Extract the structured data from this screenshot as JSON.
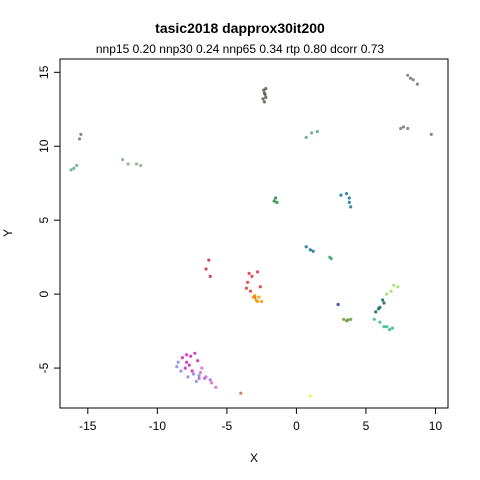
{
  "chart_data": {
    "type": "scatter",
    "title": "tasic2018 dapprox30it200",
    "subtitle": "nnp15 0.20 nnp30 0.24 nnp65 0.34 rtp 0.80 dcorr 0.73",
    "xlabel": "X",
    "ylabel": "Y",
    "xlim": [
      -17,
      10.9
    ],
    "ylim": [
      -7.7,
      15.9
    ],
    "xticks": [
      -15,
      -10,
      -5,
      0,
      5,
      10
    ],
    "yticks": [
      -5,
      0,
      5,
      10,
      15
    ],
    "grid": false,
    "clusters": [
      {
        "color": "#5a5a52",
        "points": [
          [
            -2.3,
            13.0
          ],
          [
            -2.2,
            13.3
          ],
          [
            -2.3,
            13.6
          ],
          [
            -2.2,
            13.9
          ],
          [
            -2.4,
            13.2
          ],
          [
            -2.25,
            13.5
          ],
          [
            -2.35,
            13.8
          ]
        ]
      },
      {
        "color": "#777777",
        "points": [
          [
            8.0,
            14.8
          ],
          [
            8.4,
            14.5
          ],
          [
            8.7,
            14.2
          ],
          [
            8.2,
            14.6
          ]
        ]
      },
      {
        "color": "#777777",
        "points": [
          [
            7.5,
            11.2
          ],
          [
            7.7,
            11.3
          ],
          [
            8.0,
            11.2
          ],
          [
            9.7,
            10.8
          ]
        ]
      },
      {
        "color": "#55aa77",
        "points": [
          [
            0.7,
            10.6
          ],
          [
            1.1,
            10.9
          ],
          [
            1.5,
            11.0
          ]
        ]
      },
      {
        "color": "#777777",
        "points": [
          [
            -15.5,
            10.8
          ],
          [
            -15.6,
            10.5
          ]
        ]
      },
      {
        "color": "#66aa88",
        "points": [
          [
            -16.0,
            8.5
          ],
          [
            -15.8,
            8.7
          ],
          [
            -16.2,
            8.4
          ]
        ]
      },
      {
        "color": "#88aa88",
        "points": [
          [
            -12.5,
            9.1
          ],
          [
            -12.1,
            8.8
          ],
          [
            -11.5,
            8.8
          ],
          [
            -11.2,
            8.7
          ]
        ]
      },
      {
        "color": "#228844",
        "points": [
          [
            -1.6,
            6.3
          ],
          [
            -1.5,
            6.5
          ],
          [
            -1.4,
            6.2
          ]
        ]
      },
      {
        "color": "#117799",
        "points": [
          [
            3.2,
            6.7
          ],
          [
            3.6,
            6.8
          ],
          [
            3.8,
            6.5
          ],
          [
            3.8,
            6.2
          ],
          [
            3.9,
            5.9
          ]
        ]
      },
      {
        "color": "#0a6f8f",
        "points": [
          [
            0.7,
            3.2
          ],
          [
            1.0,
            3.0
          ],
          [
            1.2,
            2.9
          ]
        ]
      },
      {
        "color": "#33aa66",
        "points": [
          [
            2.4,
            2.5
          ],
          [
            2.5,
            2.4
          ]
        ]
      },
      {
        "color": "#cc2244",
        "points": [
          [
            -6.5,
            1.7
          ],
          [
            -6.3,
            2.3
          ],
          [
            -6.2,
            1.2
          ]
        ]
      },
      {
        "color": "#dd3333",
        "points": [
          [
            -3.4,
            1.4
          ],
          [
            -3.5,
            0.8
          ],
          [
            -3.3,
            0.2
          ],
          [
            -3.0,
            -0.2
          ],
          [
            -2.6,
            0.5
          ],
          [
            -2.8,
            1.5
          ],
          [
            -3.2,
            1.2
          ],
          [
            -3.6,
            0.4
          ]
        ]
      },
      {
        "color": "#ee9900",
        "points": [
          [
            -3.1,
            -0.2
          ],
          [
            -2.8,
            -0.5
          ],
          [
            -2.5,
            -0.5
          ],
          [
            -2.7,
            -0.2
          ],
          [
            -2.9,
            -0.4
          ],
          [
            -3.0,
            -0.1
          ]
        ]
      },
      {
        "color": "#2233aa",
        "points": [
          [
            3.0,
            -0.7
          ]
        ]
      },
      {
        "color": "#99dd66",
        "points": [
          [
            7.0,
            0.6
          ],
          [
            7.3,
            0.5
          ],
          [
            6.8,
            0.2
          ],
          [
            6.5,
            0.0
          ]
        ]
      },
      {
        "color": "#116655",
        "points": [
          [
            5.7,
            -1.2
          ],
          [
            6.0,
            -0.9
          ],
          [
            6.3,
            -0.6
          ],
          [
            5.9,
            -1.0
          ],
          [
            6.2,
            -0.4
          ]
        ]
      },
      {
        "color": "#669933",
        "points": [
          [
            3.4,
            -1.7
          ],
          [
            3.6,
            -1.8
          ],
          [
            3.9,
            -1.7
          ],
          [
            3.7,
            -1.75
          ]
        ]
      },
      {
        "color": "#33bb88",
        "points": [
          [
            5.6,
            -1.7
          ],
          [
            6.0,
            -1.9
          ],
          [
            6.3,
            -2.2
          ],
          [
            6.7,
            -2.4
          ],
          [
            6.9,
            -2.3
          ],
          [
            6.5,
            -2.2
          ]
        ]
      },
      {
        "color": "#cc22bb",
        "points": [
          [
            -8.2,
            -4.3
          ],
          [
            -7.9,
            -4.6
          ],
          [
            -7.6,
            -4.2
          ],
          [
            -7.3,
            -4.0
          ],
          [
            -7.7,
            -4.8
          ],
          [
            -8.0,
            -5.0
          ],
          [
            -7.5,
            -5.2
          ],
          [
            -7.1,
            -4.5
          ],
          [
            -7.9,
            -4.1
          ]
        ]
      },
      {
        "color": "#dd66cc",
        "points": [
          [
            -6.9,
            -5.3
          ],
          [
            -6.5,
            -5.6
          ],
          [
            -6.1,
            -6.0
          ],
          [
            -5.8,
            -6.3
          ],
          [
            -6.8,
            -5.0
          ]
        ]
      },
      {
        "color": "#8888dd",
        "points": [
          [
            -8.5,
            -4.6
          ],
          [
            -8.3,
            -5.2
          ],
          [
            -7.8,
            -5.6
          ],
          [
            -7.2,
            -5.9
          ],
          [
            -7.0,
            -5.5
          ],
          [
            -7.4,
            -5.4
          ],
          [
            -8.6,
            -4.9
          ]
        ]
      },
      {
        "color": "#aa66dd",
        "points": [
          [
            -6.6,
            -5.7
          ],
          [
            -6.2,
            -5.8
          ],
          [
            -7.0,
            -5.7
          ]
        ]
      },
      {
        "color": "#cc6644",
        "points": [
          [
            -4.0,
            -6.7
          ]
        ]
      },
      {
        "color": "#eeee55",
        "points": [
          [
            1.0,
            -6.9
          ]
        ]
      }
    ]
  }
}
